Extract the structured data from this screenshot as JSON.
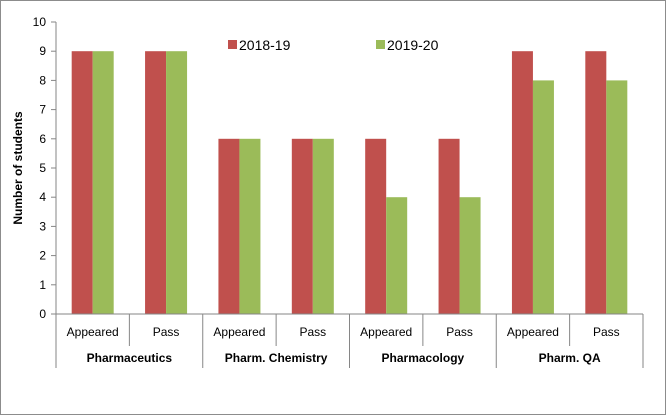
{
  "chart_data": {
    "type": "bar",
    "title": "",
    "xlabel": "",
    "ylabel": "Number of students",
    "ylim": [
      0,
      10
    ],
    "yticks": [
      0,
      1,
      2,
      3,
      4,
      5,
      6,
      7,
      8,
      9,
      10
    ],
    "grid": false,
    "legend_position": "top-center",
    "categories": [
      "Appeared",
      "Pass",
      "Appeared",
      "Pass",
      "Appeared",
      "Pass",
      "Appeared",
      "Pass"
    ],
    "groups": [
      {
        "label": "Pharmaceutics",
        "span": 2
      },
      {
        "label": "Pharm. Chemistry",
        "span": 2
      },
      {
        "label": "Pharmacology",
        "span": 2
      },
      {
        "label": "Pharm. QA",
        "span": 2
      }
    ],
    "series": [
      {
        "name": "2018-19",
        "color": "#c0504d",
        "values": [
          9,
          9,
          6,
          6,
          6,
          6,
          9,
          9
        ]
      },
      {
        "name": "2019-20",
        "color": "#9bbb59",
        "values": [
          9,
          9,
          6,
          6,
          4,
          4,
          8,
          8
        ]
      }
    ]
  }
}
